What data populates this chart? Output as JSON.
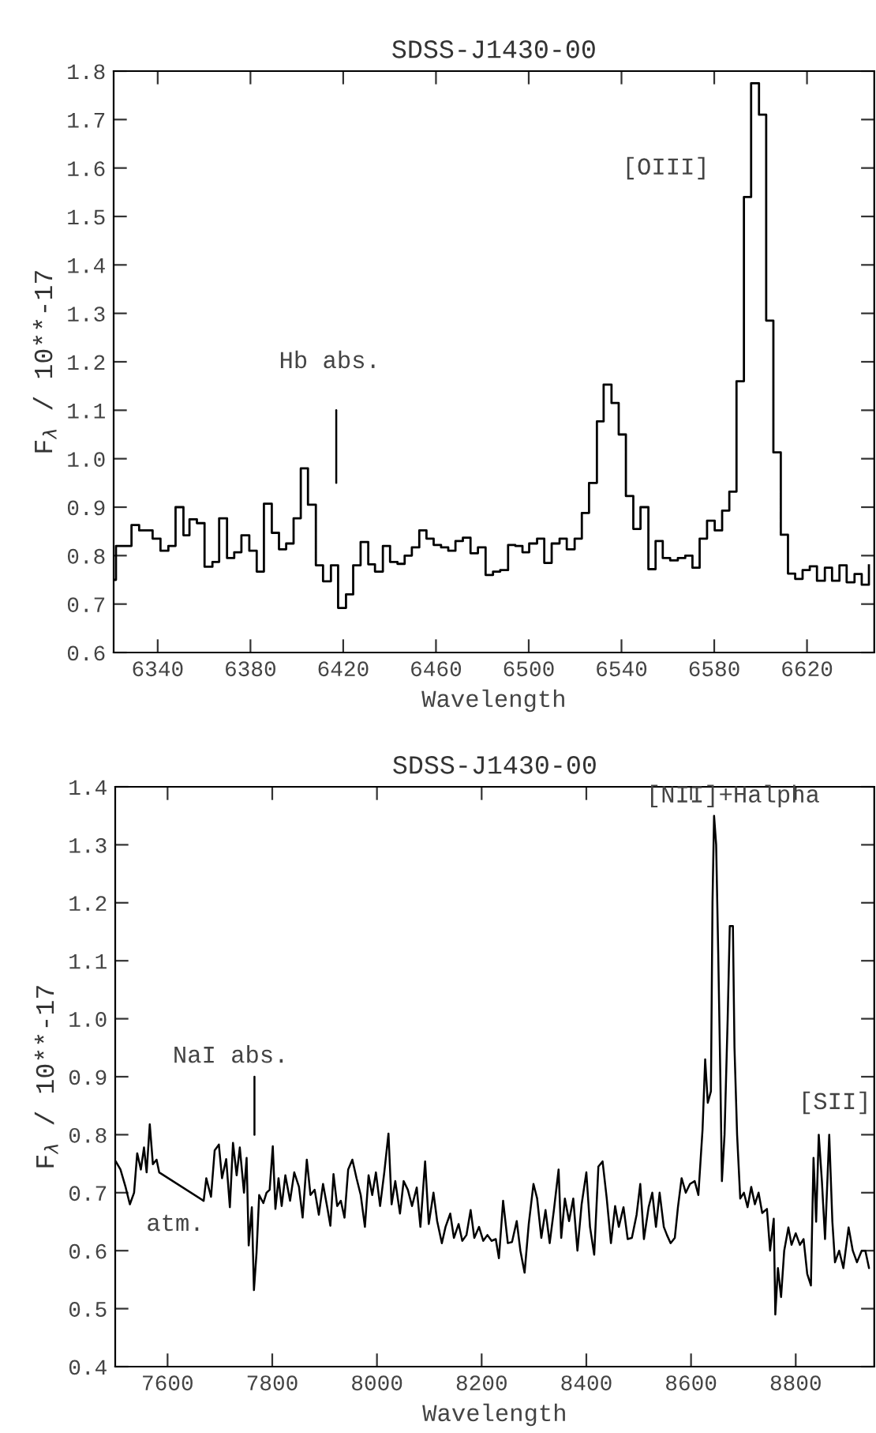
{
  "chart_data": [
    {
      "type": "step",
      "title": "SDSS-J1430-00",
      "xlabel": "Wavelength",
      "ylabel": "F$_{λ}$ / 10**-17",
      "xlim": [
        6321,
        6649
      ],
      "xticks": [
        6340,
        6380,
        6420,
        6460,
        6500,
        6540,
        6580,
        6620
      ],
      "ylim": [
        0.6,
        1.8
      ],
      "yticks": [
        0.6,
        0.7,
        0.8,
        0.9,
        {
          "value": 1,
          "label": "1.0"
        },
        1.1,
        1.2,
        1.3,
        1.4,
        1.5,
        1.6,
        1.7,
        1.8
      ],
      "series": [
        {
          "color": "#000000",
          "x": [
            6321,
            6322,
            6328.7,
            6332,
            6337.8,
            6341.2,
            6344.6,
            6347.7,
            6351.1,
            6353.7,
            6356.9,
            6360.2,
            6363.6,
            6366.5,
            6369.9,
            6373,
            6376.1,
            6379.5,
            6382.7,
            6385.8,
            6389.2,
            6392.3,
            6395.4,
            6398.6,
            6401.7,
            6404.8,
            6408.2,
            6411.3,
            6414.7,
            6417.8,
            6421.2,
            6424.3,
            6427.5,
            6430.8,
            6433.7,
            6437.1,
            6440.2,
            6443.4,
            6446.5,
            6449.6,
            6452.8,
            6455.9,
            6459,
            6462.2,
            6465.3,
            6468.4,
            6471.6,
            6474.9,
            6478.1,
            6481.4,
            6484.6,
            6487.7,
            6491.1,
            6494.2,
            6497.3,
            6500.2,
            6503.6,
            6506.7,
            6509.9,
            6513.3,
            6516.4,
            6519.8,
            6522.9,
            6526,
            6529.4,
            6532.3,
            6535.7,
            6538.8,
            6541.9,
            6545.1,
            6548.2,
            6551.6,
            6554.7,
            6557.8,
            6561,
            6564.3,
            6567.5,
            6570.6,
            6573.7,
            6576.9,
            6580.2,
            6583.4,
            6586.5,
            6589.6,
            6592.8,
            6595.9,
            6599.3,
            6602.4,
            6605.5,
            6608.7,
            6611.8,
            6614.9,
            6618.1,
            6621.2,
            6624.3,
            6627.7,
            6630.8,
            6634,
            6637.1,
            6640.5,
            6643.6,
            6646.7
          ],
          "values": [
            0.75,
            0.82,
            0.863,
            0.852,
            0.835,
            0.81,
            0.82,
            0.9,
            0.842,
            0.875,
            0.867,
            0.777,
            0.787,
            0.877,
            0.795,
            0.807,
            0.842,
            0.81,
            0.767,
            0.907,
            0.847,
            0.813,
            0.825,
            0.877,
            0.98,
            0.905,
            0.78,
            0.747,
            0.78,
            0.692,
            0.72,
            0.78,
            0.828,
            0.782,
            0.767,
            0.82,
            0.787,
            0.783,
            0.8,
            0.817,
            0.852,
            0.835,
            0.822,
            0.817,
            0.81,
            0.83,
            0.837,
            0.805,
            0.817,
            0.76,
            0.767,
            0.77,
            0.822,
            0.82,
            0.807,
            0.825,
            0.835,
            0.785,
            0.825,
            0.835,
            0.813,
            0.835,
            0.888,
            0.95,
            1.077,
            1.153,
            1.115,
            1.05,
            0.923,
            0.855,
            0.9,
            0.772,
            0.83,
            0.795,
            0.79,
            0.795,
            0.8,
            0.775,
            0.835,
            0.872,
            0.852,
            0.893,
            0.932,
            1.16,
            1.54,
            1.775,
            1.71,
            1.285,
            1.013,
            0.843,
            0.763,
            0.752,
            0.77,
            0.778,
            0.748,
            0.775,
            0.748,
            0.78,
            0.745,
            0.762,
            0.74,
            0.78
          ]
        },
        {
          "type": "line",
          "color": "#000000",
          "x": [
            6417,
            6417
          ],
          "values": [
            0.95,
            1.1
          ]
        }
      ],
      "annotations": [
        "Hb abs.",
        "[OIII]"
      ]
    },
    {
      "type": "line",
      "title": "SDSS-J1430-00",
      "xlabel": "Wavelength",
      "ylabel": "F$_{λ}$ / 10**-17",
      "xlim": [
        7500,
        8950
      ],
      "xticks": [
        7600,
        7800,
        8000,
        8200,
        8400,
        8600,
        8800
      ],
      "ylim": [
        0.4,
        1.4
      ],
      "yticks": [
        0.4,
        0.5,
        0.6,
        0.7,
        0.8,
        0.9,
        {
          "value": 1,
          "label": "1.0"
        },
        1.1,
        1.2,
        1.3,
        1.4
      ],
      "series": [
        {
          "color": "#000000",
          "x": [
            7501,
            7510,
            7520,
            7528,
            7536,
            7542,
            7549,
            7555,
            7560,
            7566,
            7572,
            7579,
            7584,
            7669,
            7674,
            7683,
            7690,
            7698,
            7704,
            7712,
            7719,
            7725,
            7732,
            7738,
            7746,
            7751,
            7755,
            7761,
            7765,
            7770,
            7775,
            7783,
            7789,
            7795,
            7801,
            7806,
            7812,
            7818,
            7825,
            7834,
            7842,
            7851,
            7858,
            7866,
            7873,
            7881,
            7889,
            7897,
            7905,
            7911,
            7917,
            7924,
            7931,
            7938,
            7945,
            7953,
            7961,
            7969,
            7977,
            7984,
            7991,
            7998,
            8006,
            8014,
            8022,
            8028,
            8035,
            8044,
            8051,
            8059,
            8067,
            8076,
            8083,
            8092,
            8099,
            8108,
            8115,
            8124,
            8131,
            8140,
            8147,
            8156,
            8163,
            8171,
            8179,
            8186,
            8195,
            8203,
            8211,
            8219,
            8227,
            8233,
            8241,
            8250,
            8258,
            8267,
            8274,
            8282,
            8290,
            8299,
            8306,
            8314,
            8322,
            8330,
            8338,
            8347,
            8352,
            8359,
            8367,
            8375,
            8383,
            8391,
            8400,
            8407,
            8415,
            8423,
            8431,
            8439,
            8447,
            8455,
            8462,
            8471,
            8479,
            8487,
            8496,
            8503,
            8510,
            8519,
            8526,
            8533,
            8540,
            8548,
            8554,
            8561,
            8569,
            8575,
            8582,
            8590,
            8598,
            8607,
            8614,
            8622,
            8627,
            8632,
            8638,
            8641,
            8644,
            8648,
            8652,
            8656,
            8659,
            8664,
            8670,
            8674,
            8680,
            8683,
            8688,
            8694,
            8701,
            8708,
            8715,
            8722,
            8729,
            8736,
            8745,
            8751,
            8758,
            8761,
            8766,
            8772,
            8778,
            8786,
            8792,
            8800,
            8808,
            8815,
            8822,
            8829,
            8834,
            8839,
            8844,
            8850,
            8856,
            8864,
            8870,
            8875,
            8883,
            8891,
            8901,
            8909,
            8917,
            8926,
            8933,
            8940
          ],
          "values": [
            0.754,
            0.74,
            0.709,
            0.68,
            0.7,
            0.768,
            0.74,
            0.778,
            0.735,
            0.818,
            0.749,
            0.757,
            0.735,
            0.686,
            0.725,
            0.693,
            0.773,
            0.783,
            0.725,
            0.758,
            0.675,
            0.786,
            0.73,
            0.778,
            0.7,
            0.76,
            0.609,
            0.675,
            0.532,
            0.597,
            0.696,
            0.682,
            0.7,
            0.705,
            0.78,
            0.672,
            0.725,
            0.677,
            0.73,
            0.686,
            0.735,
            0.71,
            0.657,
            0.757,
            0.696,
            0.705,
            0.662,
            0.715,
            0.675,
            0.643,
            0.732,
            0.677,
            0.686,
            0.657,
            0.74,
            0.757,
            0.725,
            0.696,
            0.641,
            0.73,
            0.696,
            0.735,
            0.677,
            0.735,
            0.802,
            0.68,
            0.72,
            0.664,
            0.72,
            0.705,
            0.677,
            0.709,
            0.641,
            0.754,
            0.646,
            0.7,
            0.651,
            0.613,
            0.641,
            0.664,
            0.622,
            0.646,
            0.617,
            0.627,
            0.67,
            0.622,
            0.641,
            0.617,
            0.627,
            0.617,
            0.62,
            0.587,
            0.686,
            0.613,
            0.615,
            0.651,
            0.6,
            0.562,
            0.646,
            0.715,
            0.69,
            0.622,
            0.67,
            0.613,
            0.67,
            0.74,
            0.622,
            0.69,
            0.651,
            0.69,
            0.6,
            0.68,
            0.735,
            0.641,
            0.593,
            0.745,
            0.754,
            0.69,
            0.613,
            0.677,
            0.641,
            0.675,
            0.62,
            0.622,
            0.662,
            0.715,
            0.62,
            0.675,
            0.7,
            0.641,
            0.7,
            0.641,
            0.627,
            0.613,
            0.622,
            0.675,
            0.725,
            0.7,
            0.715,
            0.72,
            0.696,
            0.809,
            0.93,
            0.855,
            0.875,
            1.2,
            1.35,
            1.3,
            1.11,
            0.9,
            0.72,
            0.8,
            1.0,
            1.16,
            1.16,
            0.95,
            0.8,
            0.69,
            0.7,
            0.675,
            0.71,
            0.68,
            0.7,
            0.665,
            0.672,
            0.6,
            0.655,
            0.49,
            0.57,
            0.52,
            0.6,
            0.64,
            0.61,
            0.63,
            0.61,
            0.62,
            0.56,
            0.54,
            0.76,
            0.65,
            0.8,
            0.72,
            0.62,
            0.8,
            0.65,
            0.58,
            0.6,
            0.57,
            0.64,
            0.6,
            0.58,
            0.6,
            0.6,
            0.57
          ]
        },
        {
          "type": "line",
          "color": "#000000",
          "x": [
            7766,
            7766
          ],
          "values": [
            0.8,
            0.9
          ]
        }
      ],
      "annotations": [
        "NaI abs.",
        "atm.",
        "[NII]+Halpha",
        "[SII]"
      ]
    }
  ]
}
